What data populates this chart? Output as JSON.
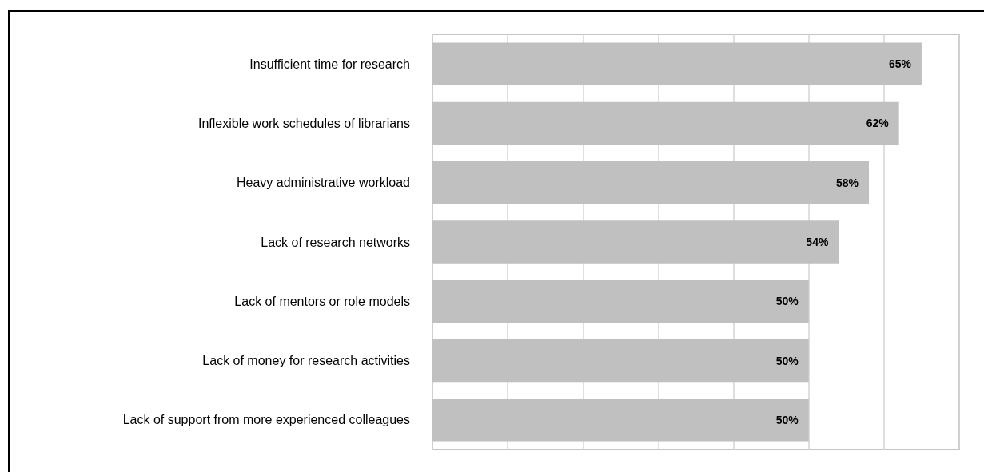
{
  "chart_data": {
    "type": "bar",
    "orientation": "horizontal",
    "categories": [
      "Insufficient time for research",
      "Inflexible work schedules of librarians",
      "Heavy administrative workload",
      "Lack of research networks",
      "Lack of mentors or role models",
      "Lack of money for research activities",
      "Lack of support from more experienced colleagues"
    ],
    "values": [
      65,
      62,
      58,
      54,
      50,
      50,
      50
    ],
    "color": "#c0c0c0",
    "value_labels": [
      "65%",
      "62%",
      "58%",
      "54%",
      "50%",
      "50%",
      "50%"
    ],
    "xlim": [
      0,
      70
    ],
    "xticks": [
      {
        "value": 0,
        "label": null
      },
      {
        "value": 10,
        "label": null
      },
      {
        "value": 20,
        "label": null
      },
      {
        "value": 30,
        "label": null
      },
      {
        "value": 40,
        "label": null
      },
      {
        "value": 50,
        "label": null
      },
      {
        "value": 60,
        "label": null
      },
      {
        "value": 70,
        "label": null
      }
    ],
    "grid": "x",
    "tick_labels": "y"
  }
}
